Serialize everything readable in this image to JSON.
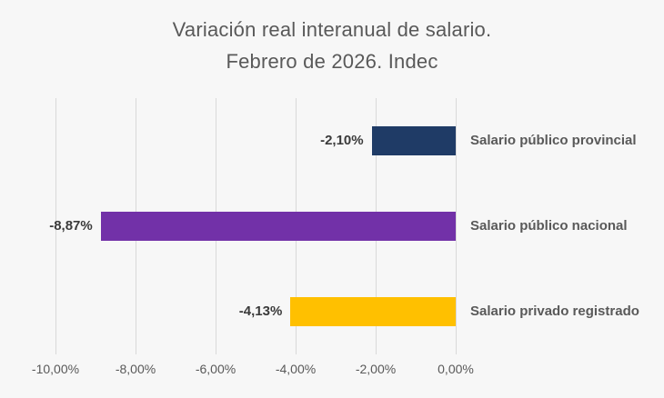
{
  "title": {
    "line1": "Variación real interanual de salario.",
    "line2": "Febrero de 2026. Indec"
  },
  "chart_data": {
    "type": "bar",
    "orientation": "horizontal",
    "title": "Variación real interanual de salario. Febrero de 2026. Indec",
    "categories": [
      "Salario público provincial",
      "Salario público nacional",
      "Salario privado registrado"
    ],
    "values": [
      -2.1,
      -8.87,
      -4.13
    ],
    "value_labels": [
      "-2,10%",
      "-8,87%",
      "-4,13%"
    ],
    "bar_colors": [
      "#1F3B66",
      "#7231A8",
      "#FFC000"
    ],
    "xlim": [
      -10,
      0
    ],
    "xticks": [
      -10,
      -8,
      -6,
      -4,
      -2,
      0
    ],
    "xtick_labels": [
      "-10,00%",
      "-8,00%",
      "-6,00%",
      "-4,00%",
      "-2,00%",
      "0,00%"
    ],
    "grid": true,
    "legend": false,
    "gridline_color": "#D9D9D9"
  },
  "colors": {
    "background": "#F7F7F7",
    "title_text": "#595959",
    "axis_text": "#595959",
    "value_text": "#3A3A3A",
    "category_text": "#595959"
  }
}
